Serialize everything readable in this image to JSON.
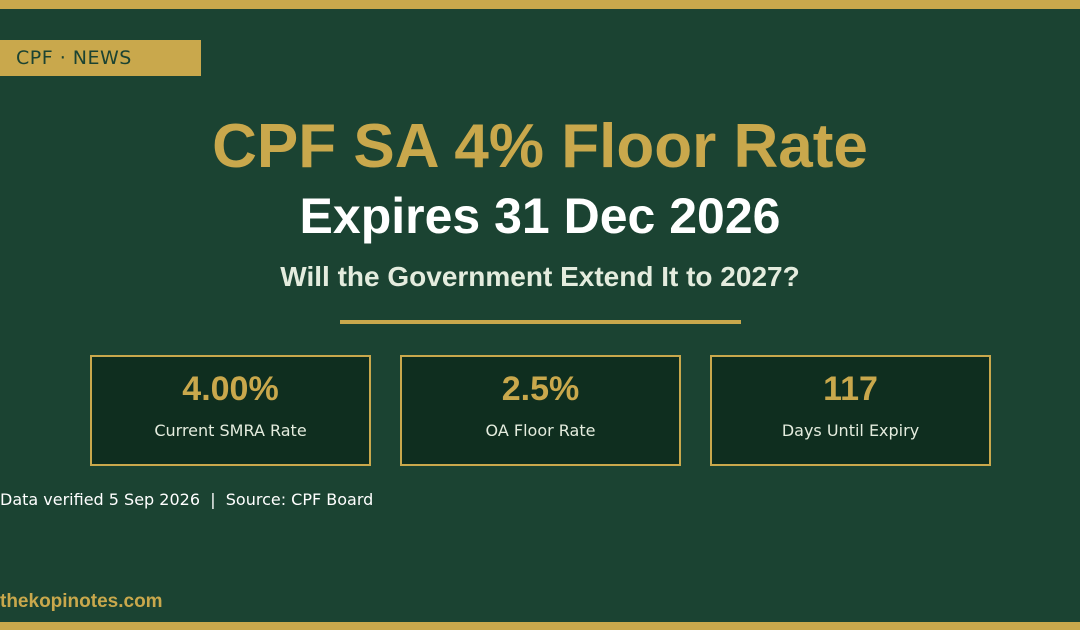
{
  "header": {
    "tag": "CPF · NEWS"
  },
  "headline": {
    "title": "CPF SA 4% Floor Rate",
    "subtitle": "Expires 31 Dec 2026",
    "question": "Will the Government Extend It to 2027?"
  },
  "stats": [
    {
      "value": "4.00%",
      "label": "Current SMRA Rate"
    },
    {
      "value": "2.5%",
      "label": "OA Floor Rate"
    },
    {
      "value": "117",
      "label": "Days Until Expiry"
    }
  ],
  "footer": {
    "source": "Data verified 5 Sep 2026  |  Source: CPF Board",
    "site": "thekopinotes.com"
  },
  "colors": {
    "background": "#1b4332",
    "accent": "#c9a84c",
    "card_background": "#0f2e1f",
    "text_light": "#e4ecde"
  }
}
